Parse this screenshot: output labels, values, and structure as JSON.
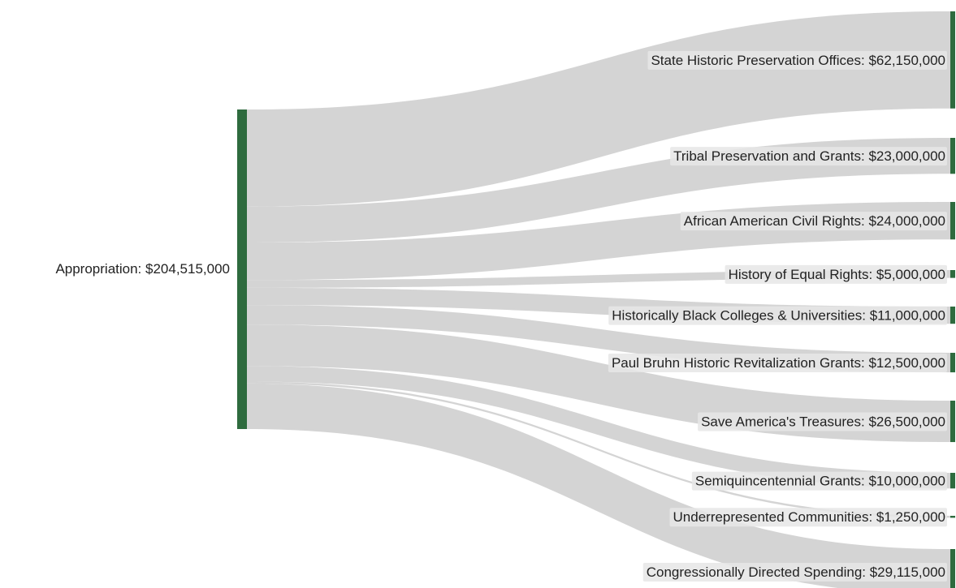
{
  "chart_data": {
    "type": "sankey",
    "source": {
      "name": "Appropriation",
      "value": 204515000,
      "label": "Appropriation: $204,515,000"
    },
    "targets": [
      {
        "name": "State Historic Preservation Offices",
        "value": 62150000,
        "label": "State Historic Preservation Offices: $62,150,000"
      },
      {
        "name": "Tribal Preservation and Grants",
        "value": 23000000,
        "label": "Tribal Preservation and Grants: $23,000,000"
      },
      {
        "name": "African American Civil Rights",
        "value": 24000000,
        "label": "African American Civil Rights: $24,000,000"
      },
      {
        "name": "History of Equal Rights",
        "value": 5000000,
        "label": "History of Equal Rights: $5,000,000"
      },
      {
        "name": "Historically Black Colleges & Universities",
        "value": 11000000,
        "label": "Historically Black Colleges & Universities: $11,000,000"
      },
      {
        "name": "Paul Bruhn Historic Revitalization Grants",
        "value": 12500000,
        "label": "Paul Bruhn Historic Revitalization Grants: $12,500,000"
      },
      {
        "name": "Save America's Treasures",
        "value": 26500000,
        "label": "Save America's Treasures: $26,500,000"
      },
      {
        "name": "Semiquincentennial Grants",
        "value": 10000000,
        "label": "Semiquincentennial Grants: $10,000,000"
      },
      {
        "name": "Underrepresented Communities",
        "value": 1250000,
        "label": "Underrepresented Communities: $1,250,000"
      },
      {
        "name": "Congressionally Directed Spending",
        "value": 29115000,
        "label": "Congressionally Directed Spending: $29,115,000"
      }
    ],
    "colors": {
      "node": "#2e6b3e",
      "link": "#cccccc",
      "label_bg": "#e6e6e6",
      "text": "#222222"
    }
  }
}
